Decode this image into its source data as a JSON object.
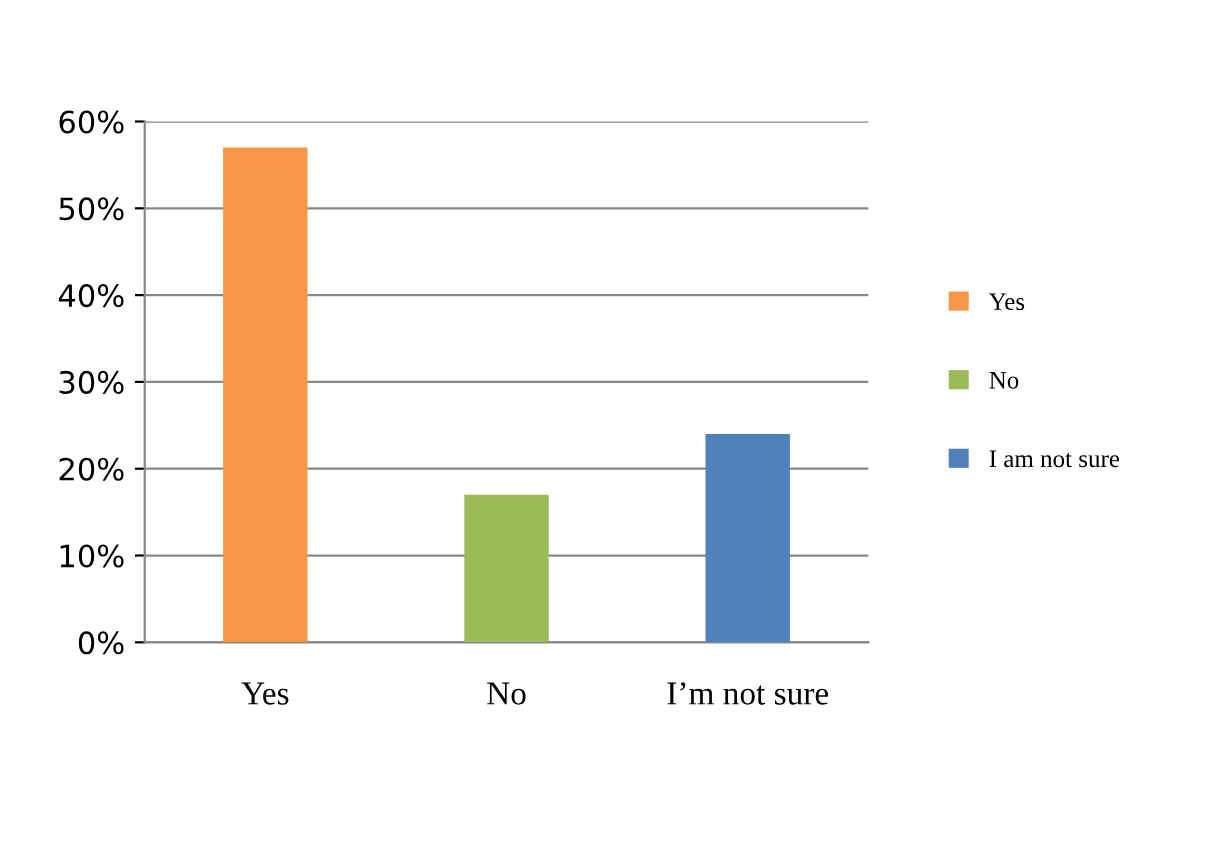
{
  "chart_data": {
    "type": "bar",
    "categories": [
      "Yes",
      "No",
      "I’m not sure"
    ],
    "series": [
      {
        "name": "Yes",
        "color": "#f79646",
        "values": [
          57,
          null,
          null
        ]
      },
      {
        "name": "No",
        "color": "#9bbb59",
        "values": [
          null,
          17,
          null
        ]
      },
      {
        "name": "I am not sure",
        "color": "#4f81bd",
        "values": [
          null,
          null,
          24
        ]
      }
    ],
    "ylim": [
      0,
      60
    ],
    "yticks": [
      {
        "value": 0,
        "label": "0%"
      },
      {
        "value": 10,
        "label": "10%"
      },
      {
        "value": 20,
        "label": "20%"
      },
      {
        "value": 30,
        "label": "30%"
      },
      {
        "value": 40,
        "label": "40%"
      },
      {
        "value": 50,
        "label": "50%"
      },
      {
        "value": 60,
        "label": "60%"
      }
    ],
    "grid": "y",
    "legend": "right"
  }
}
